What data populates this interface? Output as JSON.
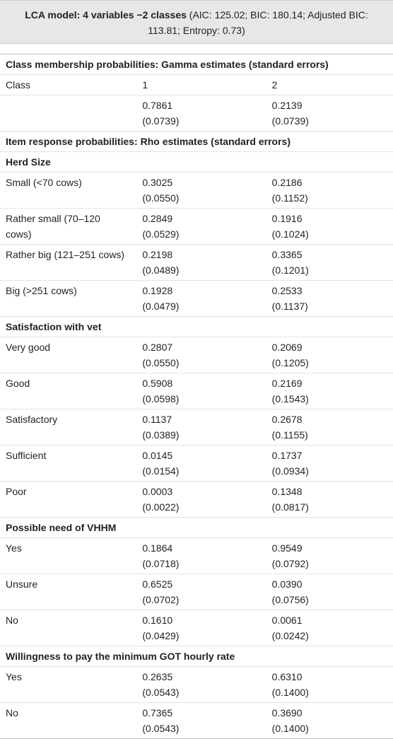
{
  "header": {
    "bold": "LCA model: 4 variables −2 classes",
    "rest": "(AIC: 125.02; BIC: 180.14; Adjusted BIC: 113.81; Entropy: 0.73)"
  },
  "table": {
    "rows": [
      {
        "heading": "Class membership probabilities: Gamma estimates (standard errors)"
      },
      {
        "cells": [
          "Class",
          [
            "1"
          ],
          [
            "2"
          ]
        ]
      },
      {
        "cells": [
          null,
          [
            "0.7861",
            "(0.0739)"
          ],
          [
            "0.2139",
            "(0.0739)"
          ]
        ]
      },
      {
        "heading": "Item response probabilities: Rho estimates (standard errors)"
      },
      {
        "subheading": "Herd Size"
      },
      {
        "cells": [
          "Small (<70 cows)",
          [
            "0.3025",
            "(0.0550)"
          ],
          [
            "0.2186",
            "(0.1152)"
          ]
        ]
      },
      {
        "cells": [
          "Rather small (70–120 cows)",
          [
            "0.2849",
            "(0.0529)"
          ],
          [
            "0.1916",
            "(0.1024)"
          ]
        ]
      },
      {
        "cells": [
          "Rather big (121–251 cows)",
          [
            "0.2198",
            "(0.0489)"
          ],
          [
            "0.3365",
            "(0.1201)"
          ]
        ]
      },
      {
        "cells": [
          "Big (>251 cows)",
          [
            "0.1928",
            "(0.0479)"
          ],
          [
            "0.2533",
            "(0.1137)"
          ]
        ]
      },
      {
        "subheading": "Satisfaction with vet"
      },
      {
        "cells": [
          "Very good",
          [
            "0.2807",
            "(0.0550)"
          ],
          [
            "0.2069",
            "(0.1205)"
          ]
        ]
      },
      {
        "cells": [
          "Good",
          [
            "0.5908",
            "(0.0598)"
          ],
          [
            "0.2169",
            "(0.1543)"
          ]
        ]
      },
      {
        "cells": [
          "Satisfactory",
          [
            "0.1137",
            "(0.0389)"
          ],
          [
            "0.2678",
            "(0.1155)"
          ]
        ]
      },
      {
        "cells": [
          "Sufficient",
          [
            "0.0145",
            "(0.0154)"
          ],
          [
            "0.1737",
            "(0.0934)"
          ]
        ]
      },
      {
        "cells": [
          "Poor",
          [
            "0.0003",
            "(0.0022)"
          ],
          [
            "0.1348",
            "(0.0817)"
          ]
        ]
      },
      {
        "subheading": "Possible need of VHHM"
      },
      {
        "cells": [
          "Yes",
          [
            "0.1864",
            "(0.0718)"
          ],
          [
            "0.9549",
            "(0.0792)"
          ]
        ]
      },
      {
        "cells": [
          "Unsure",
          [
            "0.6525",
            "(0.0702)"
          ],
          [
            "0.0390",
            "(0.0756)"
          ]
        ]
      },
      {
        "cells": [
          "No",
          [
            "0.1610",
            "(0.0429)"
          ],
          [
            "0.0061",
            "(0.0242)"
          ]
        ]
      },
      {
        "subheading": "Willingness to pay the minimum GOT hourly rate"
      },
      {
        "cells": [
          "Yes",
          [
            "0.2635",
            "(0.0543)"
          ],
          [
            "0.6310",
            "(0.1400)"
          ]
        ]
      },
      {
        "cells": [
          "No",
          [
            "0.7365",
            "(0.0543)"
          ],
          [
            "0.3690",
            "(0.1400)"
          ]
        ]
      }
    ]
  }
}
